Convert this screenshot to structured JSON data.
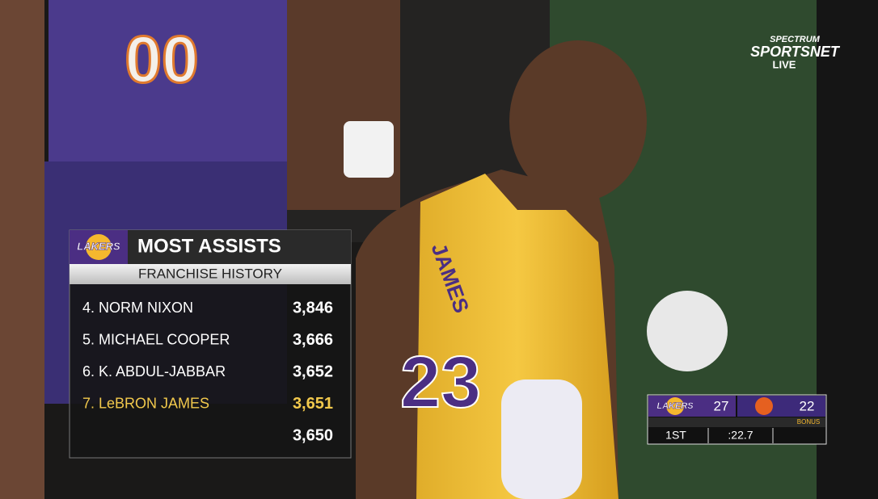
{
  "network": {
    "line1": "SPECTRUM",
    "line2": "SPORTSNET",
    "line3": "LIVE"
  },
  "scene": {
    "jersey_left": "00",
    "jersey_name": "JAMES",
    "jersey_number": "23"
  },
  "leaderboard": {
    "logo": "LAKERS",
    "title": "MOST ASSISTS",
    "subtitle": "FRANCHISE HISTORY",
    "rows": [
      {
        "label": "4. NORM NIXON",
        "value": "3,846"
      },
      {
        "label": "5. MICHAEL COOPER",
        "value": "3,666"
      },
      {
        "label": "6. K. ABDUL-JABBAR",
        "value": "3,652"
      },
      {
        "label": "7. LeBRON JAMES",
        "value": "3,651"
      },
      {
        "value": "3,650"
      }
    ]
  },
  "scorebug": {
    "home_logo": "LAKERS",
    "home_score": "27",
    "away_score": "22",
    "away_bonus": "BONUS",
    "period": "1ST",
    "clock": ":22.7"
  }
}
